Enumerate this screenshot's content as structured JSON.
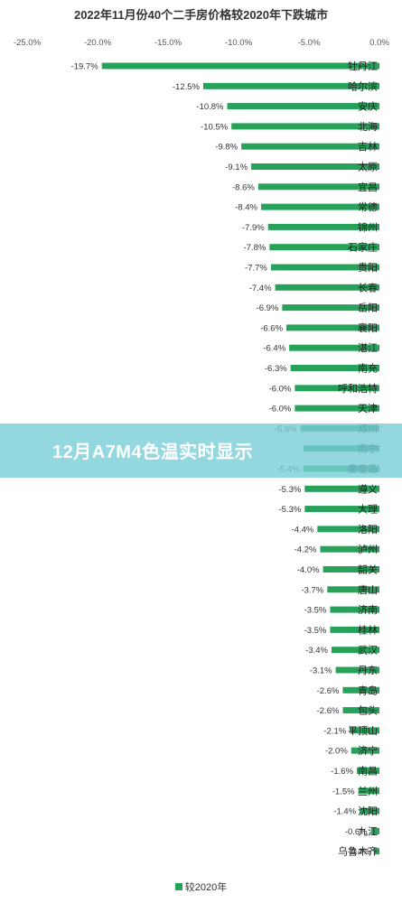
{
  "chart_data": {
    "type": "bar",
    "orientation": "horizontal",
    "title": "2022年11月份40个二手房价格较2020年下跌城市",
    "categories": [
      "牡丹江",
      "哈尔滨",
      "安庆",
      "北海",
      "吉林",
      "太原",
      "宜昌",
      "常德",
      "锦州",
      "石家庄",
      "贵阳",
      "长春",
      "岳阳",
      "襄阳",
      "湛江",
      "南充",
      "呼和浩特",
      "天津",
      "郑州",
      "南宁",
      "秦皇岛",
      "遵义",
      "大理",
      "洛阳",
      "泸州",
      "韶关",
      "唐山",
      "济南",
      "桂林",
      "武汉",
      "丹东",
      "青岛",
      "包头",
      "平顶山",
      "济宁",
      "南昌",
      "兰州",
      "沈阳",
      "九江",
      "乌鲁木齐"
    ],
    "series": [
      {
        "name": "较2020年",
        "values": [
          -19.7,
          -12.5,
          -10.8,
          -10.5,
          -9.8,
          -9.1,
          -8.6,
          -8.4,
          -7.9,
          -7.8,
          -7.7,
          -7.4,
          -6.9,
          -6.6,
          -6.4,
          -6.3,
          -6.0,
          -6.0,
          -5.6,
          -5.4,
          -5.4,
          -5.3,
          -5.3,
          -4.4,
          -4.2,
          -4.0,
          -3.7,
          -3.5,
          -3.5,
          -3.4,
          -3.1,
          -2.6,
          -2.6,
          -2.1,
          -2.0,
          -1.6,
          -1.5,
          -1.4,
          -0.6,
          -0.4
        ],
        "labels": [
          "-19.7%",
          "-12.5%",
          "-10.8%",
          "-10.5%",
          "-9.8%",
          "-9.1%",
          "-8.6%",
          "-8.4%",
          "-7.9%",
          "-7.8%",
          "-7.7%",
          "-7.4%",
          "-6.9%",
          "-6.6%",
          "-6.4%",
          "-6.3%",
          "-6.0%",
          "-6.0%",
          "-5.6%",
          "",
          "-5.4%",
          "-5.3%",
          "-5.3%",
          "-4.4%",
          "-4.2%",
          "-4.0%",
          "-3.7%",
          "-3.5%",
          "-3.5%",
          "-3.4%",
          "-3.1%",
          "-2.6%",
          "-2.6%",
          "-2.1%",
          "-2.0%",
          "-1.6%",
          "-1.5%",
          "-1.4%",
          "-0.6%",
          "-0.4%"
        ]
      }
    ],
    "xlim": [
      -25,
      0
    ],
    "x_ticks": [
      -25,
      -20,
      -15,
      -10,
      -5,
      0
    ],
    "x_tick_labels": [
      "-25.0%",
      "-20.0%",
      "-15.0%",
      "-10.0%",
      "-5.0%",
      "0.0%"
    ],
    "xlabel": "",
    "ylabel": "",
    "grid": false,
    "legend_position": "bottom",
    "bar_color": "#27a25a"
  },
  "overlay": {
    "text": "12月A7M4色温实时显示"
  }
}
